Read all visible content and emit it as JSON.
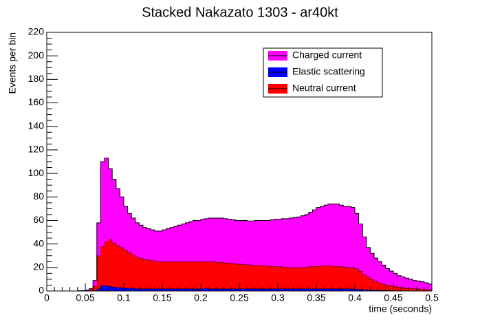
{
  "chart_data": {
    "type": "stacked_histogram",
    "title": "Stacked Nakazato 1303  - ar40kt",
    "xlabel": "time (seconds)",
    "ylabel": "Events per bin",
    "bins": [
      0,
      0.005,
      0.01,
      0.015,
      0.02,
      0.025,
      0.03,
      0.035,
      0.04,
      0.045,
      0.05,
      0.055,
      0.06,
      0.065,
      0.07,
      0.075,
      0.08,
      0.085,
      0.09,
      0.095,
      0.1,
      0.105,
      0.11,
      0.115,
      0.12,
      0.125,
      0.13,
      0.135,
      0.14,
      0.145,
      0.15,
      0.155,
      0.16,
      0.165,
      0.17,
      0.175,
      0.18,
      0.185,
      0.19,
      0.195,
      0.2,
      0.205,
      0.21,
      0.215,
      0.22,
      0.225,
      0.23,
      0.235,
      0.24,
      0.245,
      0.25,
      0.255,
      0.26,
      0.265,
      0.27,
      0.275,
      0.28,
      0.285,
      0.29,
      0.295,
      0.3,
      0.305,
      0.31,
      0.315,
      0.32,
      0.325,
      0.33,
      0.335,
      0.34,
      0.345,
      0.35,
      0.355,
      0.36,
      0.365,
      0.37,
      0.375,
      0.38,
      0.385,
      0.39,
      0.395,
      0.4,
      0.405,
      0.41,
      0.415,
      0.42,
      0.425,
      0.43,
      0.435,
      0.44,
      0.445,
      0.45,
      0.455,
      0.46,
      0.465,
      0.47,
      0.475,
      0.48,
      0.485,
      0.49,
      0.495,
      0.5
    ],
    "series": [
      {
        "name": "Charged current",
        "color": "#ff00ff",
        "values": [
          0,
          0,
          0,
          0,
          0,
          0,
          0,
          0,
          0.1,
          0.1,
          0.3,
          1,
          5,
          28,
          72,
          71,
          60,
          54,
          48,
          43,
          37,
          33,
          31,
          29,
          28,
          27,
          26.5,
          26,
          25.5,
          26,
          27,
          28,
          29,
          30,
          31,
          32,
          33,
          34,
          35,
          35,
          36,
          36.5,
          37,
          37,
          37.5,
          37.5,
          37.5,
          37,
          37,
          37,
          37,
          37.5,
          37,
          37.5,
          38,
          38,
          38.5,
          38.5,
          39.5,
          40,
          40,
          41,
          41,
          42,
          42.5,
          43,
          44,
          44.5,
          46,
          48,
          50,
          50.5,
          51.5,
          52.5,
          53,
          53,
          52,
          51.5,
          52,
          51,
          47,
          40,
          32,
          25,
          22,
          19.5,
          18,
          16,
          14,
          12.5,
          11,
          9.5,
          9,
          8.5,
          7.5,
          7,
          6.5,
          6.5,
          5.5,
          5
        ]
      },
      {
        "name": "Elastic scattering",
        "color": "#0000ff",
        "values": [
          0,
          0,
          0,
          0,
          0,
          0,
          0,
          0,
          0,
          0,
          0.1,
          0.2,
          0.5,
          2,
          5,
          4.5,
          4,
          3.5,
          3,
          3,
          2.5,
          2.5,
          2.5,
          2,
          2,
          2,
          2,
          2,
          2,
          2,
          2,
          2,
          2,
          2,
          2,
          2,
          2,
          2,
          2,
          2,
          2,
          2.5,
          2,
          2,
          2,
          2,
          2,
          2,
          2,
          2,
          2,
          2,
          2,
          2,
          2,
          2,
          2,
          2,
          2,
          2,
          2,
          2,
          2,
          2,
          2,
          2,
          2,
          2,
          2,
          2,
          2,
          2,
          2,
          2,
          2,
          2,
          2,
          2,
          2,
          2,
          1.5,
          1.5,
          1,
          1,
          1,
          0.8,
          0.7,
          0.6,
          0.5,
          0.5,
          0.4,
          0.4,
          0.3,
          0.3,
          0.3,
          0.2,
          0.2,
          0.2,
          0.2,
          0.1
        ]
      },
      {
        "name": "Neutral current",
        "color": "#ff0000",
        "values": [
          0,
          0,
          0,
          0,
          0,
          0,
          0,
          0,
          0.1,
          0.2,
          0.4,
          0.8,
          3.5,
          28,
          33,
          37.5,
          40,
          37.5,
          36,
          34,
          32.5,
          30.5,
          28.5,
          27,
          26,
          25,
          24.5,
          24,
          23.5,
          23,
          23,
          23,
          23,
          23,
          23,
          23,
          23,
          23,
          23,
          23,
          23,
          22.5,
          23,
          23,
          22.5,
          22.5,
          22,
          22,
          21.5,
          21,
          21,
          20.5,
          20.5,
          20,
          20,
          20,
          19.5,
          19.5,
          19,
          19,
          19,
          18.5,
          18.5,
          18,
          18,
          18,
          18,
          18.5,
          19,
          19,
          19,
          19.5,
          19.5,
          19.5,
          19,
          19,
          19,
          18.5,
          18,
          18,
          17.5,
          15.5,
          13,
          11,
          9,
          7.7,
          6.3,
          5.4,
          4.5,
          4,
          3.6,
          3.1,
          2.7,
          2.2,
          2.2,
          1.8,
          1.8,
          1.3,
          1.3,
          0.9
        ]
      }
    ],
    "stack_order": [
      1,
      2,
      0
    ],
    "xlim": [
      0,
      0.5
    ],
    "xticks": [
      0,
      0.05,
      0.1,
      0.15,
      0.2,
      0.25,
      0.3,
      0.35,
      0.4,
      0.45,
      0.5
    ],
    "ylim": [
      0,
      220
    ],
    "yticks": [
      0,
      20,
      40,
      60,
      80,
      100,
      120,
      140,
      160,
      180,
      200,
      220
    ],
    "legend_position": "top-right"
  }
}
